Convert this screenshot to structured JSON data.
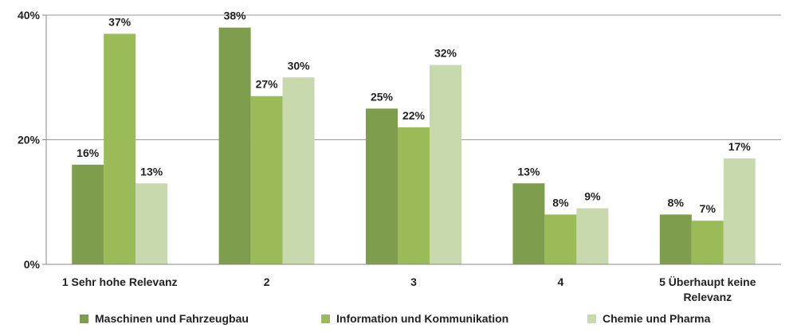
{
  "chart_data": {
    "type": "bar",
    "categories": [
      "1 Sehr hohe Relevanz",
      "2",
      "3",
      "4",
      "5 Überhaupt keine Relevanz"
    ],
    "category_lines": [
      [
        "1 Sehr hohe Relevanz"
      ],
      [
        "2"
      ],
      [
        "3"
      ],
      [
        "4"
      ],
      [
        "5 Überhaupt keine",
        "Relevanz"
      ]
    ],
    "series": [
      {
        "name": "Maschinen und Fahrzeugbau",
        "color": "#7f9e4d",
        "values": [
          16,
          38,
          25,
          13,
          8
        ],
        "labels": [
          "16%",
          "38%",
          "25%",
          "13%",
          "8%"
        ]
      },
      {
        "name": "Information und Kommunikation",
        "color": "#9bbb59",
        "values": [
          37,
          27,
          22,
          8,
          7
        ],
        "labels": [
          "37%",
          "27%",
          "22%",
          "8%",
          "7%"
        ]
      },
      {
        "name": "Chemie und Pharma",
        "color": "#c8d9ad",
        "values": [
          13,
          30,
          32,
          9,
          17
        ],
        "labels": [
          "13%",
          "30%",
          "32%",
          "9%",
          "17%"
        ]
      }
    ],
    "yticks": [
      0,
      20,
      40
    ],
    "ytick_labels": [
      "0%",
      "20%",
      "40%"
    ],
    "ylim": [
      0,
      40
    ],
    "grid": true,
    "legend_position": "bottom"
  }
}
